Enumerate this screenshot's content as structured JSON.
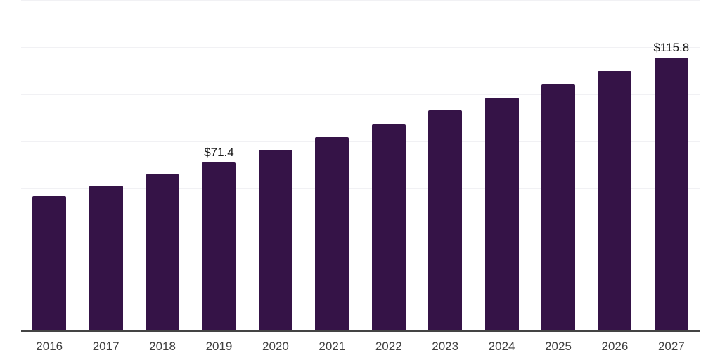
{
  "chart_data": {
    "type": "bar",
    "title": "",
    "xlabel": "",
    "ylabel": "",
    "categories": [
      "2016",
      "2017",
      "2018",
      "2019",
      "2020",
      "2021",
      "2022",
      "2023",
      "2024",
      "2025",
      "2026",
      "2027"
    ],
    "values": [
      57.0,
      61.5,
      66.3,
      71.4,
      76.8,
      82.1,
      87.6,
      93.5,
      98.8,
      104.5,
      110.2,
      115.8
    ],
    "data_labels": {
      "2019": "$71.4",
      "2027": "$115.8"
    },
    "ylim": [
      0,
      140
    ],
    "gridline_step": 20,
    "grid": true,
    "legend_position": "none",
    "bar_color": "#351347",
    "axis_color": "#444444",
    "gridline_color": "#f1f1f4",
    "tick_label_color": "#3f3f3f",
    "data_label_color": "#1a1a1a",
    "background_color": "#ffffff"
  }
}
